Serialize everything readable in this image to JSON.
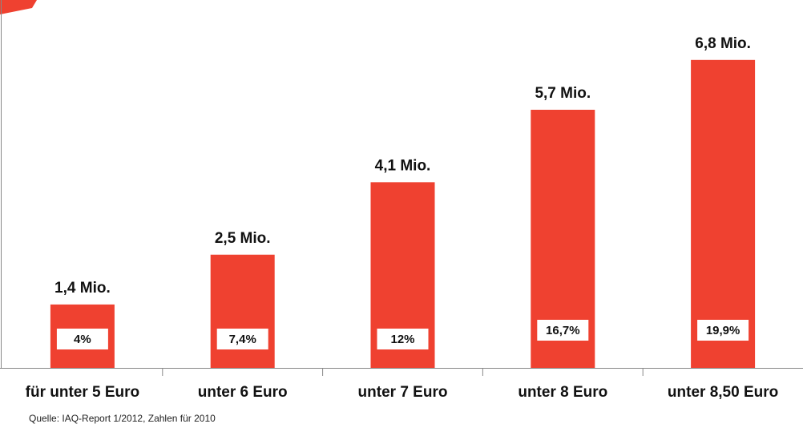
{
  "chart_data": {
    "type": "bar",
    "categories": [
      "für unter 5 Euro",
      "unter 6 Euro",
      "unter 7 Euro",
      "unter 8 Euro",
      "unter 8,50 Euro"
    ],
    "values": [
      1.4,
      2.5,
      4.1,
      5.7,
      6.8
    ],
    "value_labels": [
      "1,4 Mio.",
      "2,5 Mio.",
      "4,1 Mio.",
      "5,7 Mio.",
      "6,8 Mio."
    ],
    "shares": [
      4,
      7.4,
      12,
      16.7,
      19.9
    ],
    "share_labels": [
      "4%",
      "7,4%",
      "12%",
      "16,7%",
      "19,9%"
    ],
    "color": "#ef4130",
    "source": "Quelle: IAQ-Report 1/2012, Zahlen für 2010"
  }
}
